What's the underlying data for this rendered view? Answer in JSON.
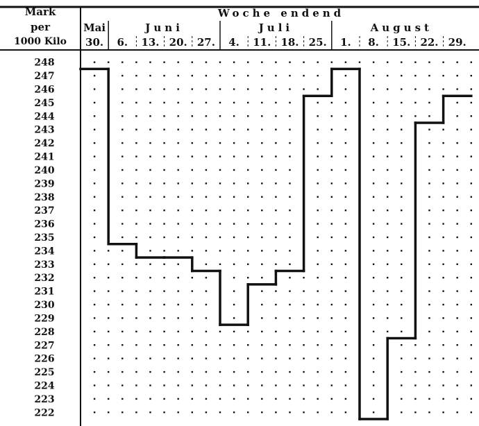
{
  "chart_data": {
    "type": "line",
    "step": true,
    "header": {
      "y_unit": [
        "Mark",
        "per",
        "1000 Kilo"
      ],
      "group_title": "Woche endend",
      "months": [
        "Mai",
        "Juni",
        "Juli",
        "August"
      ]
    },
    "x": [
      "30.",
      "6.",
      "13.",
      "20.",
      "27.",
      "4.",
      "11.",
      "18.",
      "25.",
      "1.",
      "8.",
      "15.",
      "22.",
      "29."
    ],
    "x_month_index": [
      0,
      1,
      1,
      1,
      1,
      2,
      2,
      2,
      2,
      3,
      3,
      3,
      3,
      3
    ],
    "series": [
      {
        "values": [
          247.5,
          234.5,
          233.5,
          233.5,
          232.5,
          228.5,
          231.5,
          232.5,
          245.5,
          247.5,
          221.5,
          227.5,
          243.5,
          245.5
        ]
      }
    ],
    "ylim": [
      222,
      248
    ],
    "yticks": [
      248,
      247,
      246,
      245,
      244,
      243,
      242,
      241,
      240,
      239,
      238,
      237,
      236,
      235,
      234,
      233,
      232,
      231,
      230,
      229,
      228,
      227,
      226,
      225,
      224,
      223,
      222
    ],
    "grid": "dotted-vertical",
    "line_color": "#111111"
  }
}
